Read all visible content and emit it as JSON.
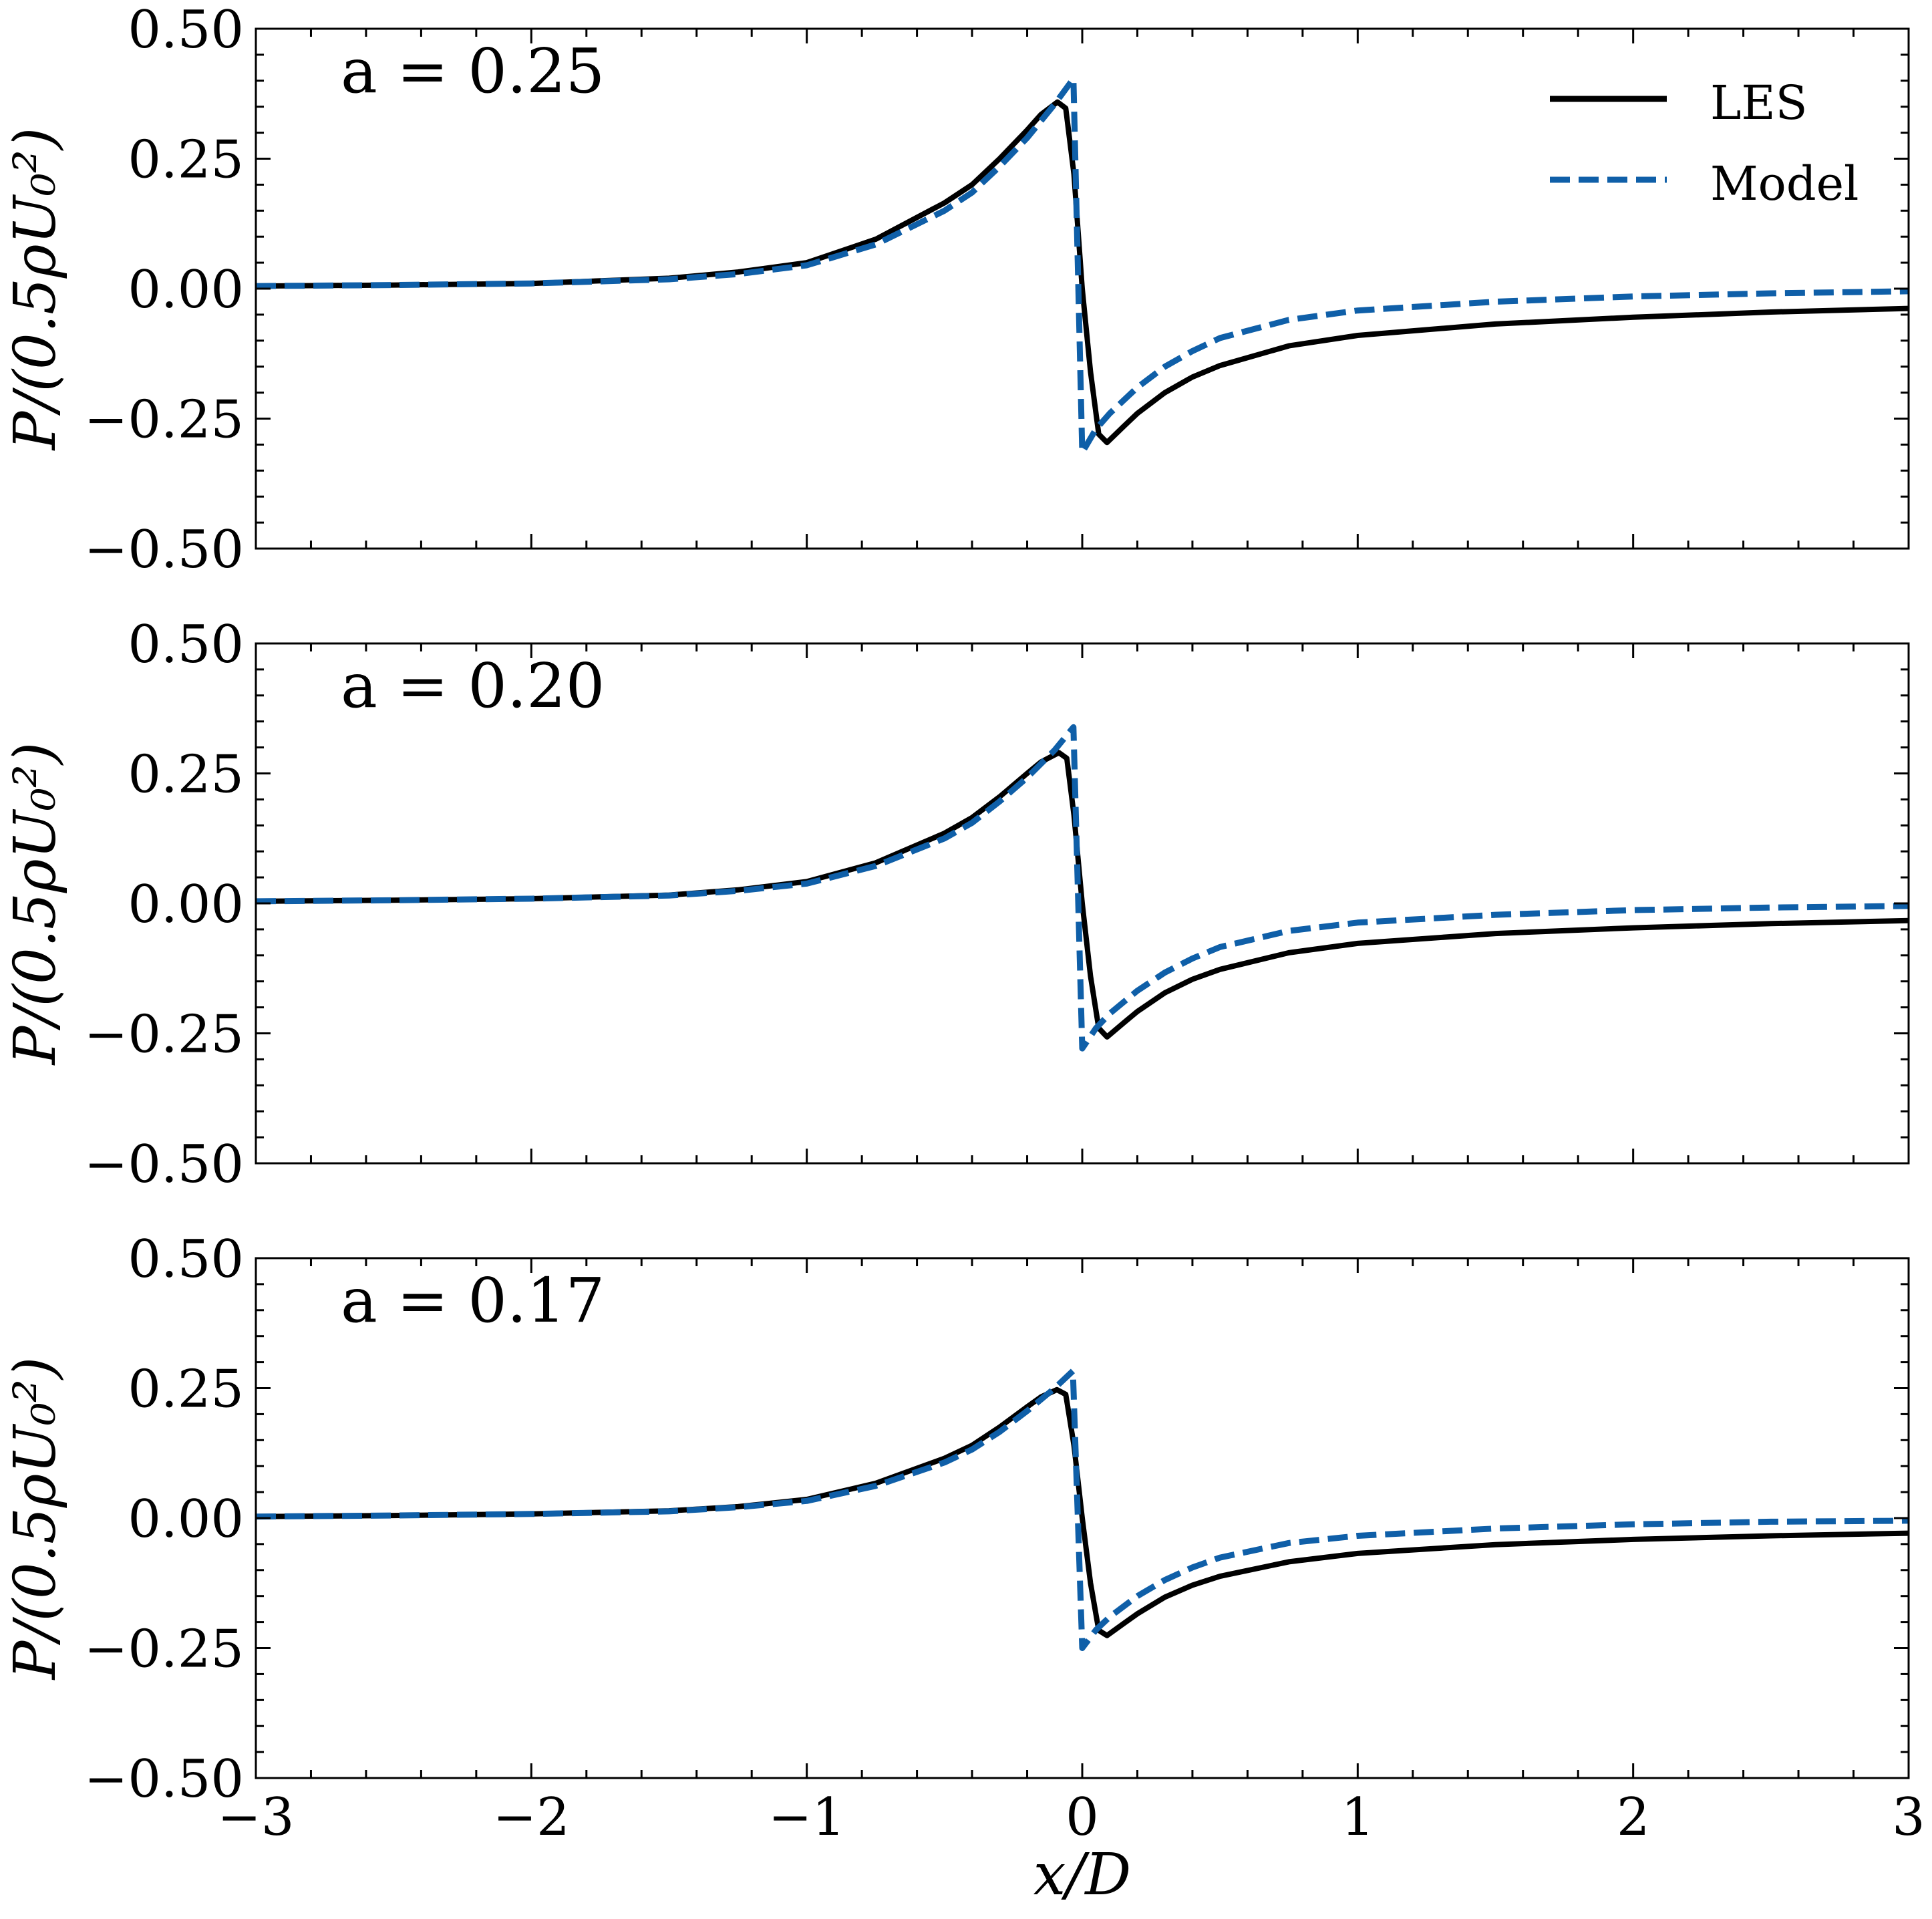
{
  "chart_data": {
    "type": "line",
    "xlabel": "x/D",
    "ylabel": "P/(0.5ρU₀²)",
    "xlim": [
      -3,
      3
    ],
    "ylim": [
      -0.5,
      0.5
    ],
    "x_ticks": [
      -3,
      -2,
      -1,
      0,
      1,
      2,
      3
    ],
    "x_tick_labels": [
      "−3",
      "−2",
      "−1",
      "0",
      "1",
      "2",
      "3"
    ],
    "y_ticks": [
      0.5,
      0.25,
      0.0,
      -0.25,
      -0.5
    ],
    "y_tick_labels": [
      "0.50",
      "0.25",
      "0.00",
      "−0.25",
      "−0.50"
    ],
    "x_minor_step": 0.2,
    "y_minor_step": 0.05,
    "legend": {
      "placement": "top-right",
      "entries": [
        {
          "label": "LES",
          "color": "#000000",
          "style": "solid"
        },
        {
          "label": "Model",
          "color": "#0f5fa8",
          "style": "dashed"
        }
      ]
    },
    "panels": [
      {
        "label": "a = 0.25",
        "label_var": "a",
        "label_value": "0.25",
        "series": [
          {
            "name": "LES",
            "x": [
              -3,
              -2.5,
              -2,
              -1.5,
              -1.25,
              -1,
              -0.75,
              -0.5,
              -0.4,
              -0.3,
              -0.2,
              -0.15,
              -0.09,
              -0.06,
              -0.03,
              0.0,
              0.03,
              0.06,
              0.09,
              0.15,
              0.2,
              0.3,
              0.4,
              0.5,
              0.75,
              1,
              1.5,
              2,
              2.5,
              3
            ],
            "y": [
              0.005,
              0.007,
              0.01,
              0.02,
              0.032,
              0.05,
              0.095,
              0.165,
              0.2,
              0.25,
              0.305,
              0.335,
              0.359,
              0.347,
              0.22,
              0.0,
              -0.16,
              -0.28,
              -0.296,
              -0.265,
              -0.24,
              -0.2,
              -0.17,
              -0.148,
              -0.11,
              -0.09,
              -0.068,
              -0.055,
              -0.045,
              -0.038
            ]
          },
          {
            "name": "Model",
            "x": [
              -3,
              -2.5,
              -2,
              -1.5,
              -1.25,
              -1,
              -0.75,
              -0.5,
              -0.4,
              -0.3,
              -0.2,
              -0.1,
              -0.032,
              0.0,
              0.05,
              0.1,
              0.2,
              0.3,
              0.4,
              0.5,
              0.75,
              1,
              1.5,
              2,
              2.5,
              3
            ],
            "y": [
              0.005,
              0.007,
              0.01,
              0.018,
              0.028,
              0.045,
              0.085,
              0.15,
              0.185,
              0.235,
              0.29,
              0.355,
              0.404,
              -0.315,
              -0.27,
              -0.24,
              -0.19,
              -0.15,
              -0.12,
              -0.095,
              -0.06,
              -0.042,
              -0.025,
              -0.015,
              -0.009,
              -0.005
            ]
          }
        ]
      },
      {
        "label": "a = 0.20",
        "label_var": "a",
        "label_value": "0.20",
        "series": [
          {
            "name": "LES",
            "x": [
              -3,
              -2.5,
              -2,
              -1.5,
              -1.25,
              -1,
              -0.75,
              -0.5,
              -0.4,
              -0.3,
              -0.2,
              -0.15,
              -0.085,
              -0.056,
              -0.03,
              0.0,
              0.03,
              0.06,
              0.09,
              0.15,
              0.2,
              0.3,
              0.4,
              0.5,
              0.75,
              1,
              1.5,
              2,
              2.5,
              3
            ],
            "y": [
              0.004,
              0.006,
              0.009,
              0.016,
              0.026,
              0.042,
              0.078,
              0.135,
              0.165,
              0.205,
              0.25,
              0.272,
              0.29,
              0.279,
              0.17,
              0.0,
              -0.14,
              -0.24,
              -0.257,
              -0.23,
              -0.208,
              -0.172,
              -0.146,
              -0.127,
              -0.095,
              -0.077,
              -0.058,
              -0.047,
              -0.039,
              -0.033
            ]
          },
          {
            "name": "Model",
            "x": [
              -3,
              -2.5,
              -2,
              -1.5,
              -1.25,
              -1,
              -0.75,
              -0.5,
              -0.4,
              -0.3,
              -0.2,
              -0.1,
              -0.032,
              0.0,
              0.05,
              0.1,
              0.2,
              0.3,
              0.4,
              0.5,
              0.75,
              1,
              1.5,
              2,
              2.5,
              3
            ],
            "y": [
              0.004,
              0.006,
              0.009,
              0.015,
              0.024,
              0.038,
              0.072,
              0.125,
              0.155,
              0.196,
              0.242,
              0.295,
              0.339,
              -0.279,
              -0.24,
              -0.212,
              -0.168,
              -0.133,
              -0.106,
              -0.084,
              -0.053,
              -0.037,
              -0.022,
              -0.013,
              -0.008,
              -0.005
            ]
          }
        ]
      },
      {
        "label": "a = 0.17",
        "label_var": "a",
        "label_value": "0.17",
        "series": [
          {
            "name": "LES",
            "x": [
              -3,
              -2.5,
              -2,
              -1.5,
              -1.25,
              -1,
              -0.75,
              -0.5,
              -0.4,
              -0.3,
              -0.2,
              -0.15,
              -0.092,
              -0.06,
              -0.03,
              0.0,
              0.03,
              0.06,
              0.09,
              0.15,
              0.2,
              0.3,
              0.4,
              0.5,
              0.75,
              1,
              1.5,
              2,
              2.5,
              3
            ],
            "y": [
              0.003,
              0.005,
              0.008,
              0.014,
              0.022,
              0.036,
              0.067,
              0.115,
              0.14,
              0.175,
              0.214,
              0.233,
              0.247,
              0.238,
              0.14,
              0.0,
              -0.125,
              -0.216,
              -0.226,
              -0.203,
              -0.184,
              -0.152,
              -0.129,
              -0.112,
              -0.084,
              -0.068,
              -0.051,
              -0.041,
              -0.034,
              -0.029
            ]
          },
          {
            "name": "Model",
            "x": [
              -3,
              -2.5,
              -2,
              -1.5,
              -1.25,
              -1,
              -0.75,
              -0.5,
              -0.4,
              -0.3,
              -0.2,
              -0.1,
              -0.034,
              0.0,
              0.05,
              0.1,
              0.2,
              0.3,
              0.4,
              0.5,
              0.75,
              1,
              1.5,
              2,
              2.5,
              3
            ],
            "y": [
              0.003,
              0.005,
              0.008,
              0.013,
              0.021,
              0.033,
              0.062,
              0.107,
              0.132,
              0.166,
              0.206,
              0.25,
              0.283,
              -0.25,
              -0.215,
              -0.19,
              -0.15,
              -0.119,
              -0.095,
              -0.076,
              -0.048,
              -0.034,
              -0.02,
              -0.012,
              -0.007,
              -0.005
            ]
          }
        ]
      }
    ]
  }
}
